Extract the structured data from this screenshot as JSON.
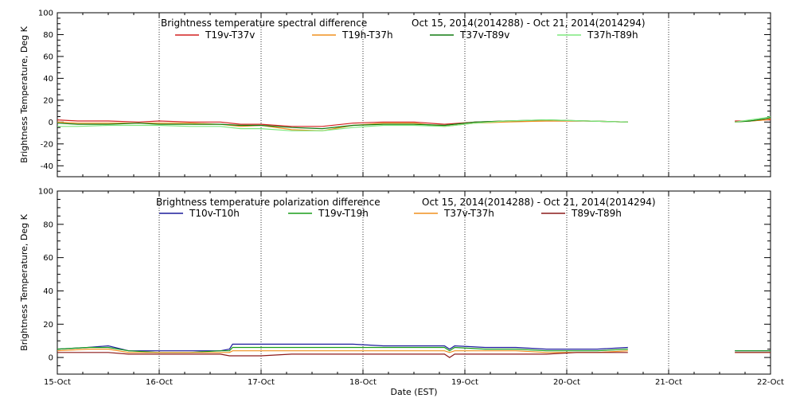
{
  "chart_data": [
    {
      "type": "line",
      "title": "Brightness temperature spectral difference",
      "date_range": "Oct 15, 2014(2014288) - Oct 21, 2014(2014294)",
      "ylabel": "Brightness Temperature, Deg K",
      "xlabel": "",
      "xlim": [
        0,
        7
      ],
      "ylim": [
        -50,
        100
      ],
      "yticks": [
        -40,
        -20,
        0,
        20,
        40,
        60,
        80,
        100
      ],
      "ytick_labels": [
        "-40",
        "-20",
        "0",
        "20",
        "40",
        "60",
        "80",
        "100"
      ],
      "x_gridlines": [
        1,
        2,
        3,
        4,
        5,
        6
      ],
      "grid": "vertical dotted",
      "legend": "top",
      "series": [
        {
          "name": "T19v-T37v",
          "color": "#d42020",
          "x": [
            0,
            0.2,
            0.5,
            0.8,
            1.0,
            1.3,
            1.6,
            1.8,
            2.0,
            2.3,
            2.6,
            2.9,
            3.2,
            3.5,
            3.8,
            4.1,
            4.4,
            4.8,
            5.2,
            5.6,
            null,
            6.65,
            6.8,
            6.95,
            7.0
          ],
          "y": [
            2,
            1,
            1,
            0,
            1,
            0,
            0,
            -2,
            -2,
            -4,
            -4,
            -1,
            0,
            0,
            -2,
            0,
            1,
            1,
            1,
            0,
            null,
            1,
            1,
            2,
            2
          ]
        },
        {
          "name": "T19h-T37h",
          "color": "#f0901e",
          "x": [
            0,
            0.2,
            0.5,
            0.8,
            1.0,
            1.3,
            1.6,
            1.8,
            2.0,
            2.3,
            2.6,
            2.9,
            3.2,
            3.5,
            3.8,
            4.1,
            4.4,
            4.8,
            5.2,
            5.6,
            null,
            6.65,
            6.8,
            6.95,
            7.0
          ],
          "y": [
            0,
            -1,
            -1,
            -1,
            -1,
            -1,
            -2,
            -4,
            -3,
            -7,
            -8,
            -3,
            -1,
            -1,
            -4,
            -1,
            0,
            1,
            1,
            0,
            null,
            0,
            1,
            2,
            3
          ]
        },
        {
          "name": "T37v-T89v",
          "color": "#127c12",
          "x": [
            0,
            0.2,
            0.5,
            0.8,
            1.0,
            1.3,
            1.6,
            1.8,
            2.0,
            2.3,
            2.6,
            2.9,
            3.2,
            3.5,
            3.8,
            4.1,
            4.4,
            4.8,
            5.2,
            5.6,
            null,
            6.65,
            6.8,
            6.95,
            7.0
          ],
          "y": [
            -1,
            -2,
            -2,
            -1,
            -2,
            -2,
            -2,
            -3,
            -3,
            -5,
            -6,
            -3,
            -2,
            -2,
            -3,
            0,
            1,
            2,
            1,
            0,
            null,
            0,
            1,
            3,
            4
          ]
        },
        {
          "name": "T37h-T89h",
          "color": "#7ee87e",
          "x": [
            0,
            0.2,
            0.5,
            0.8,
            1.0,
            1.3,
            1.6,
            1.8,
            2.0,
            2.3,
            2.6,
            2.9,
            3.2,
            3.5,
            3.8,
            4.1,
            4.4,
            4.8,
            5.2,
            5.6,
            null,
            6.65,
            6.8,
            6.95,
            7.0
          ],
          "y": [
            -4,
            -4,
            -3,
            -3,
            -3,
            -4,
            -4,
            -6,
            -6,
            -8,
            -8,
            -5,
            -3,
            -3,
            -4,
            -1,
            1,
            2,
            1,
            0,
            null,
            0,
            2,
            4,
            5
          ]
        }
      ]
    },
    {
      "type": "line",
      "title": "Brightness temperature polarization difference",
      "date_range": "Oct 15, 2014(2014288) - Oct 21, 2014(2014294)",
      "ylabel": "Brightness Temperature, Deg K",
      "xlabel": "Date (EST)",
      "xlim": [
        0,
        7
      ],
      "ylim": [
        -10,
        100
      ],
      "yticks": [
        0,
        20,
        40,
        60,
        80,
        100
      ],
      "ytick_labels": [
        "0",
        "20",
        "40",
        "60",
        "80",
        "100"
      ],
      "xtick_labels": [
        "15-Oct",
        "16-Oct",
        "17-Oct",
        "18-Oct",
        "19-Oct",
        "20-Oct",
        "21-Oct",
        "22-Oct"
      ],
      "x_gridlines": [
        1,
        2,
        3,
        4,
        5,
        6
      ],
      "grid": "vertical dotted",
      "legend": "top",
      "series": [
        {
          "name": "T10v-T10h",
          "color": "#1c1c9c",
          "x": [
            0,
            0.3,
            0.5,
            0.7,
            1.0,
            1.3,
            1.6,
            1.69,
            1.72,
            2.0,
            2.3,
            2.6,
            2.9,
            3.2,
            3.5,
            3.8,
            3.85,
            3.9,
            4.2,
            4.5,
            4.8,
            5.1,
            5.3,
            5.6,
            null,
            6.65,
            6.8,
            6.95,
            7.0
          ],
          "y": [
            5,
            6,
            7,
            4,
            4,
            4,
            4,
            5,
            8,
            8,
            8,
            8,
            8,
            7,
            7,
            7,
            5,
            7,
            6,
            6,
            5,
            5,
            5,
            6,
            null,
            4,
            4,
            4,
            4
          ]
        },
        {
          "name": "T19v-T19h",
          "color": "#1a9e1a",
          "x": [
            0,
            0.3,
            0.5,
            0.7,
            1.0,
            1.3,
            1.6,
            1.69,
            1.72,
            2.0,
            2.3,
            2.6,
            2.9,
            3.2,
            3.5,
            3.8,
            3.85,
            3.9,
            4.2,
            4.5,
            4.8,
            5.1,
            5.3,
            5.6,
            null,
            6.65,
            6.8,
            6.95,
            7.0
          ],
          "y": [
            5,
            6,
            6,
            4,
            3,
            3,
            4,
            4,
            6,
            6,
            6,
            6,
            6,
            6,
            6,
            6,
            4,
            6,
            5,
            5,
            4,
            4,
            4,
            5,
            null,
            4,
            4,
            4,
            4
          ]
        },
        {
          "name": "T37v-T37h",
          "color": "#f0901e",
          "x": [
            0,
            0.3,
            0.5,
            0.7,
            1.0,
            1.3,
            1.6,
            1.69,
            1.72,
            2.0,
            2.3,
            2.6,
            2.9,
            3.2,
            3.5,
            3.8,
            3.85,
            3.9,
            4.2,
            4.5,
            4.8,
            5.1,
            5.3,
            5.6,
            null,
            6.65,
            6.8,
            6.95,
            7.0
          ],
          "y": [
            4,
            5,
            5,
            3,
            3,
            3,
            3,
            3,
            4,
            4,
            4,
            4,
            4,
            4,
            4,
            4,
            3,
            4,
            4,
            4,
            3,
            3,
            3,
            4,
            null,
            3,
            3,
            3,
            3
          ]
        },
        {
          "name": "T89v-T89h",
          "color": "#8c1a1a",
          "x": [
            0,
            0.3,
            0.5,
            0.7,
            1.0,
            1.3,
            1.6,
            1.69,
            1.72,
            2.0,
            2.3,
            2.6,
            2.9,
            3.2,
            3.5,
            3.8,
            3.85,
            3.9,
            4.2,
            4.5,
            4.8,
            5.1,
            5.3,
            5.6,
            null,
            6.65,
            6.8,
            6.95,
            7.0
          ],
          "y": [
            3,
            3,
            3,
            2,
            2,
            2,
            2,
            1,
            1,
            1,
            2,
            2,
            2,
            2,
            2,
            2,
            0,
            2,
            2,
            2,
            2,
            3,
            3,
            3,
            null,
            3,
            3,
            3,
            3
          ]
        }
      ]
    }
  ]
}
